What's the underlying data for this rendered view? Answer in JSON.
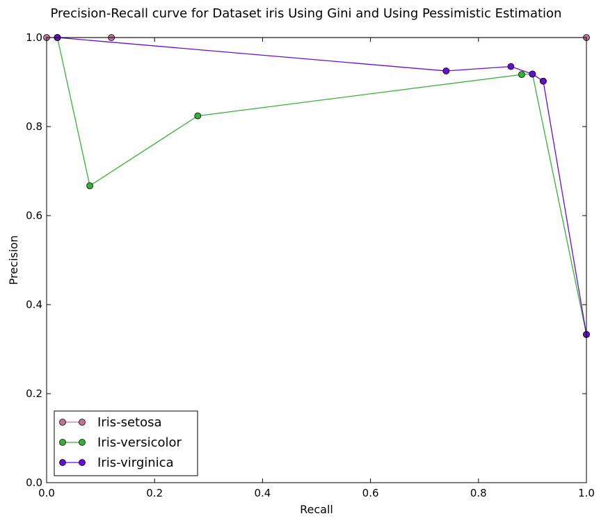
{
  "chart_data": {
    "type": "line",
    "title": "Precision-Recall curve for Dataset iris Using Gini and Using Pessimistic Estimation",
    "xlabel": "Recall",
    "ylabel": "Precision",
    "xlim": [
      0.0,
      1.0
    ],
    "ylim": [
      0.0,
      1.0
    ],
    "x_ticks": [
      "0.0",
      "0.2",
      "0.4",
      "0.6",
      "0.8",
      "1.0"
    ],
    "y_ticks": [
      "0.0",
      "0.2",
      "0.4",
      "0.6",
      "0.8",
      "1.0"
    ],
    "grid": false,
    "legend_position": "bottom-left",
    "series": [
      {
        "name": "Iris-setosa",
        "color": "#c0739a",
        "x": [
          0.0,
          0.02,
          0.12,
          1.0
        ],
        "y": [
          1.0,
          1.0,
          1.0,
          1.0
        ]
      },
      {
        "name": "Iris-versicolor",
        "color": "#33b333",
        "x": [
          0.02,
          0.08,
          0.28,
          0.88,
          0.9,
          1.0
        ],
        "y": [
          1.0,
          0.667,
          0.824,
          0.917,
          0.918,
          0.333
        ]
      },
      {
        "name": "Iris-virginica",
        "color": "#6a0ad6",
        "x": [
          0.02,
          0.74,
          0.86,
          0.9,
          0.92,
          0.92,
          1.0
        ],
        "y": [
          1.0,
          0.925,
          0.935,
          0.918,
          0.902,
          0.902,
          0.333
        ]
      }
    ]
  }
}
